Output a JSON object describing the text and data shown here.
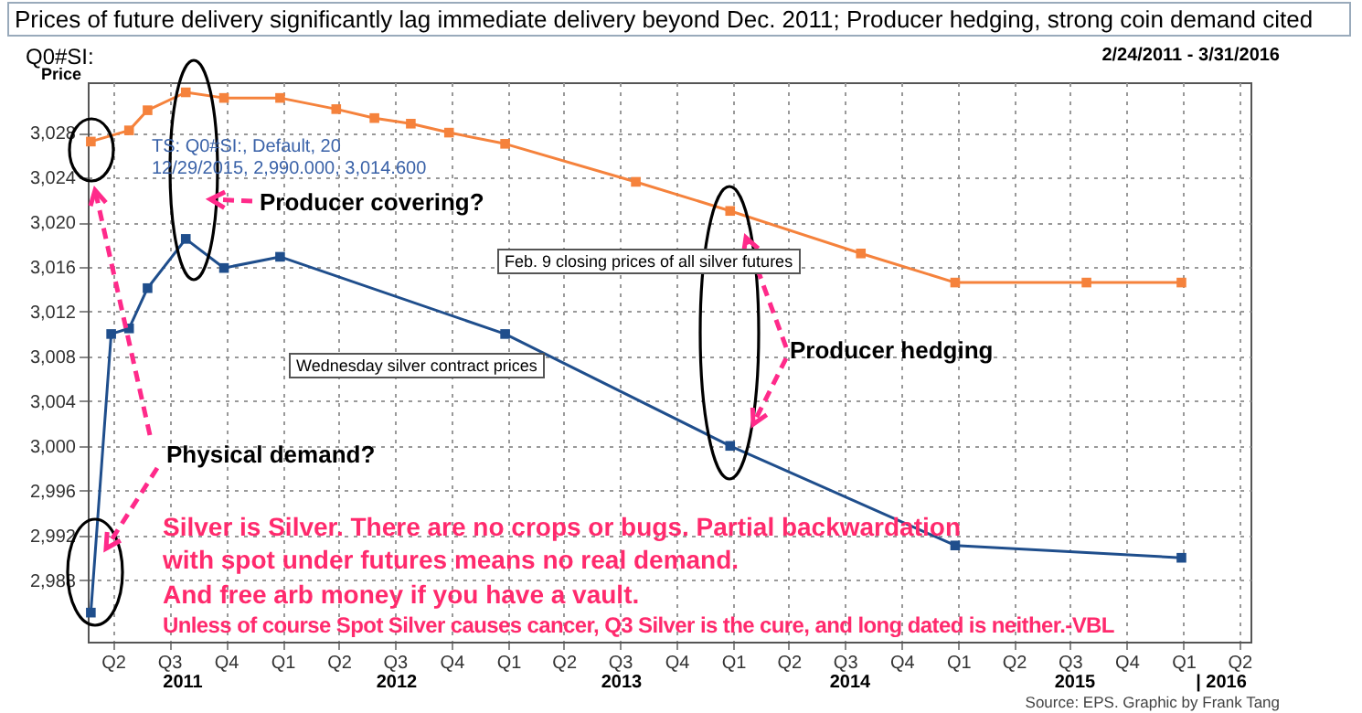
{
  "chart_data": {
    "type": "line",
    "title": "Prices of future delivery significantly lag immediate delivery beyond Dec. 2011; Producer hedging, strong coin demand cited",
    "subtitle": "Q0#SI:",
    "ylabel": "Price",
    "series": [
      {
        "color": "#f5823c",
        "x": [
          "2011-02-24",
          "2011-04-27",
          "2011-05-27",
          "2011-07-28",
          "2011-09-28",
          "2011-12-28",
          "2012-03-28",
          "2012-05-29",
          "2012-07-27",
          "2012-09-27",
          "2012-12-27",
          "2013-07-27",
          "2013-12-27",
          "2014-07-27",
          "2014-12-27",
          "2015-07-28",
          "2015-12-29"
        ],
        "values": [
          3027.2,
          3028.2,
          3030.0,
          3031.6,
          3031.1,
          3031.1,
          3030.1,
          3029.3,
          3028.8,
          3028.0,
          3027.0,
          3023.6,
          3021.0,
          3017.2,
          3014.6,
          3014.6,
          3014.6
        ]
      },
      {
        "color": "#1f4e8c",
        "x": [
          "2011-02-24",
          "2011-03-29",
          "2011-04-27",
          "2011-05-27",
          "2011-07-28",
          "2011-09-28",
          "2011-12-28",
          "2012-12-27",
          "2013-12-27",
          "2014-12-27",
          "2015-12-29"
        ],
        "values": [
          2985.1,
          3010.0,
          3010.5,
          3014.1,
          3018.5,
          3015.9,
          3016.9,
          3010.0,
          3000.0,
          2991.1,
          2990.0
        ]
      }
    ],
    "xlim": [
      "2011-02-19",
      "2016-04-19"
    ],
    "xticks": [
      {
        "value": "2011-04-01",
        "label": "Q2"
      },
      {
        "value": "2011-07-01",
        "label": "Q3"
      },
      {
        "value": "2011-10-01",
        "label": "Q4"
      },
      {
        "value": "2012-01-01",
        "label": "Q1"
      },
      {
        "value": "2012-04-01",
        "label": "Q2"
      },
      {
        "value": "2012-07-01",
        "label": "Q3"
      },
      {
        "value": "2012-10-01",
        "label": "Q4"
      },
      {
        "value": "2013-01-01",
        "label": "Q1"
      },
      {
        "value": "2013-04-01",
        "label": "Q2"
      },
      {
        "value": "2013-07-01",
        "label": "Q3"
      },
      {
        "value": "2013-10-01",
        "label": "Q4"
      },
      {
        "value": "2014-01-01",
        "label": "Q1"
      },
      {
        "value": "2014-04-01",
        "label": "Q2"
      },
      {
        "value": "2014-07-01",
        "label": "Q3"
      },
      {
        "value": "2014-10-01",
        "label": "Q4"
      },
      {
        "value": "2015-01-01",
        "label": "Q1"
      },
      {
        "value": "2015-04-01",
        "label": "Q2"
      },
      {
        "value": "2015-07-01",
        "label": "Q3"
      },
      {
        "value": "2015-10-01",
        "label": "Q4"
      },
      {
        "value": "2016-01-01",
        "label": "Q1"
      },
      {
        "value": "2016-04-01",
        "label": "Q2"
      }
    ],
    "ylim": [
      2982.5,
      3032.5
    ],
    "yticks": [
      {
        "value": 2988,
        "label": "2,988"
      },
      {
        "value": 2992,
        "label": "2,992"
      },
      {
        "value": 2996,
        "label": "2,996"
      },
      {
        "value": 3000,
        "label": "3,000"
      },
      {
        "value": 3004,
        "label": "3,004"
      },
      {
        "value": 3008,
        "label": "3,008"
      },
      {
        "value": 3012,
        "label": "3,012"
      },
      {
        "value": 3016,
        "label": "3,016"
      },
      {
        "value": 3020,
        "label": "3,020"
      },
      {
        "value": 3024,
        "label": "3,024"
      },
      {
        "value": 3028,
        "label": "3,028"
      }
    ],
    "grid": true,
    "marker": "square",
    "line_style": "solid",
    "annotations": [
      "2/24/2011 - 3/31/2016",
      "TS: Q0#SI:, Default, 20",
      "12/29/2015, 2,990.000, 3,014.600",
      "Producer covering?",
      "Feb. 9 closing prices of all silver futures",
      "Wednesday silver contract prices",
      "Producer hedging",
      "Physical demand?",
      "Silver is Silver. There are no crops or bugs. Partial backwardation",
      "with spot under futures means no real demand.",
      "And free arb money if you have a vault.",
      "Unless of course Spot Silver causes cancer, Q3 Silver is the cure, and long dated is neither.-VBL",
      "Source: EPS. Graphic by Frank Tang",
      "2011",
      "2012",
      "2013",
      "2014",
      "2015",
      "| 2016"
    ]
  }
}
